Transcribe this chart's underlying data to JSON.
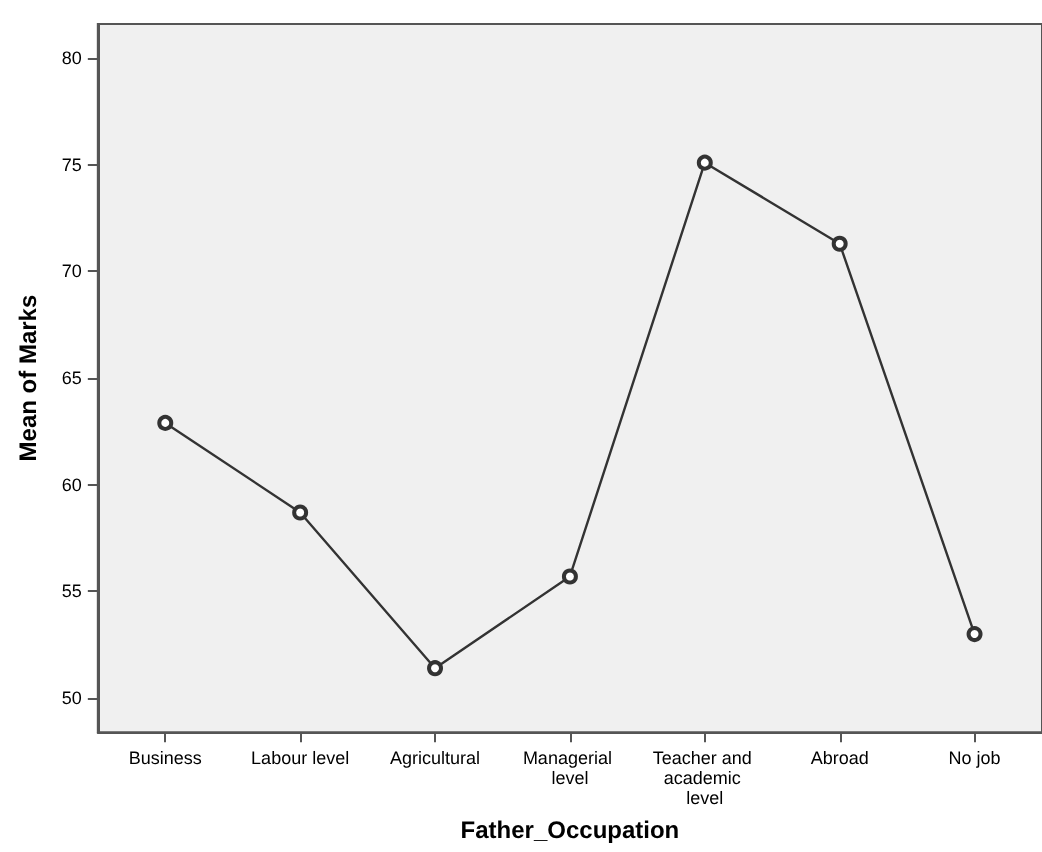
{
  "chart_data": {
    "type": "line",
    "xlabel": "Father_Occupation",
    "ylabel": "Mean of Marks",
    "categories": [
      "Business",
      "Labour level",
      "Agricultural",
      "Managerial level",
      "Teacher and academic level",
      "Abroad",
      "No job"
    ],
    "series": [
      {
        "color": "#333333",
        "values": [
          62.9,
          58.7,
          51.4,
          55.7,
          75.1,
          71.3,
          53.0
        ]
      }
    ],
    "ylim": [
      48.4,
      81.6
    ],
    "yticks": [
      50,
      55,
      60,
      65,
      70,
      75,
      80
    ],
    "grid": false,
    "marker": "circle",
    "line_style": "solid"
  }
}
